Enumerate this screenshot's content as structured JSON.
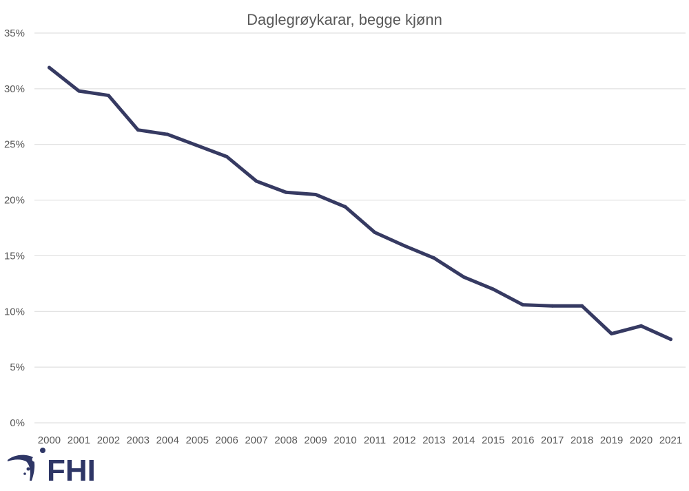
{
  "chart_data": {
    "type": "line",
    "title": "Daglegrøykarar, begge kjønn",
    "xlabel": "",
    "ylabel": "",
    "ylim": [
      0,
      35
    ],
    "y_ticks": [
      0,
      5,
      10,
      15,
      20,
      25,
      30,
      35
    ],
    "y_tick_labels": [
      "0%",
      "5%",
      "10%",
      "15%",
      "20%",
      "25%",
      "30%",
      "35%"
    ],
    "grid": true,
    "legend": "none",
    "categories": [
      "2000",
      "2001",
      "2002",
      "2003",
      "2004",
      "2005",
      "2006",
      "2007",
      "2008",
      "2009",
      "2010",
      "2011",
      "2012",
      "2013",
      "2014",
      "2015",
      "2016",
      "2017",
      "2018",
      "2019",
      "2020",
      "2021"
    ],
    "series": [
      {
        "name": "Daglegrøykarar, begge kjønn",
        "color": "#363a62",
        "values": [
          31.9,
          29.8,
          29.4,
          26.3,
          25.9,
          24.9,
          23.9,
          21.7,
          20.7,
          20.5,
          19.4,
          17.1,
          15.9,
          14.8,
          13.1,
          12.0,
          10.6,
          10.5,
          10.5,
          8.0,
          8.7,
          7.5
        ]
      }
    ]
  },
  "logo": {
    "text": "FHI",
    "color": "#2e3666"
  }
}
